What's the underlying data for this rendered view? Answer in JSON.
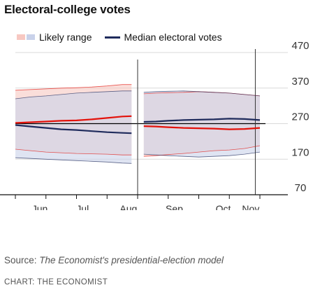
{
  "chart_data": {
    "type": "area",
    "title": "Electoral-college votes",
    "legend": [
      {
        "key": "range",
        "label": "Likely range"
      },
      {
        "key": "median",
        "label": "Median electoral votes"
      }
    ],
    "x_tick_labels": [
      "Jun",
      "Jul",
      "Aug",
      "Sep",
      "Oct",
      "Nov"
    ],
    "y_ticks": [
      70,
      170,
      270,
      370,
      470
    ],
    "ylim": [
      70,
      470
    ],
    "y_axis_position": "right",
    "colors": {
      "red_line": "#e3120b",
      "blue_line": "#1f2b5c",
      "red_band": "#f7c8c2",
      "blue_band": "#c9d2ea",
      "threshold": "#000000"
    },
    "threshold": 270,
    "series": [
      {
        "party": "red",
        "segments": [
          {
            "x": [
              0,
              0.5,
              1,
              1.5,
              2,
              2.5,
              3,
              3.5,
              3.8
            ],
            "median": [
              272,
              274,
              276,
              278,
              279,
              282,
              286,
              290,
              291
            ],
            "low": [
              198,
              194,
              190,
              188,
              186,
              185,
              184,
              182,
              182
            ],
            "high": [
              364,
              366,
              368,
              370,
              371,
              373,
              376,
              380,
              380
            ]
          },
          {
            "x": [
              4.2,
              4.6,
              5,
              5.5,
              6,
              6.5,
              7,
              7.5,
              8
            ],
            "median": [
              263,
              262,
              260,
              258,
              257,
              256,
              254,
              255,
              258
            ],
            "low": [
              178,
              180,
              183,
              186,
              190,
              194,
              196,
              200,
              208
            ],
            "high": [
              354,
              356,
              357,
              358,
              360,
              358,
              356,
              352,
              348
            ]
          }
        ]
      },
      {
        "party": "blue",
        "segments": [
          {
            "x": [
              0,
              0.5,
              1,
              1.5,
              2,
              2.5,
              3,
              3.5,
              3.8
            ],
            "median": [
              266,
              262,
              258,
              254,
              252,
              249,
              246,
              244,
              243
            ],
            "low": [
              174,
              172,
              170,
              168,
              166,
              164,
              162,
              159,
              158
            ],
            "high": [
              340,
              345,
              348,
              352,
              356,
              358,
              360,
              362,
              362
            ]
          },
          {
            "x": [
              4.2,
              4.6,
              5,
              5.5,
              6,
              6.5,
              7,
              7.5,
              8
            ],
            "median": [
              275,
              276,
              278,
              280,
              281,
              282,
              284,
              283,
              280
            ],
            "low": [
              184,
              182,
              180,
              178,
              176,
              178,
              180,
              184,
              190
            ],
            "high": [
              358,
              360,
              361,
              362,
              360,
              358,
              356,
              352,
              348
            ]
          }
        ]
      }
    ]
  },
  "footer": {
    "source_prefix": "Source: ",
    "source_body": "The Economist's presidential-election model",
    "credit": "CHART: THE ECONOMIST"
  }
}
